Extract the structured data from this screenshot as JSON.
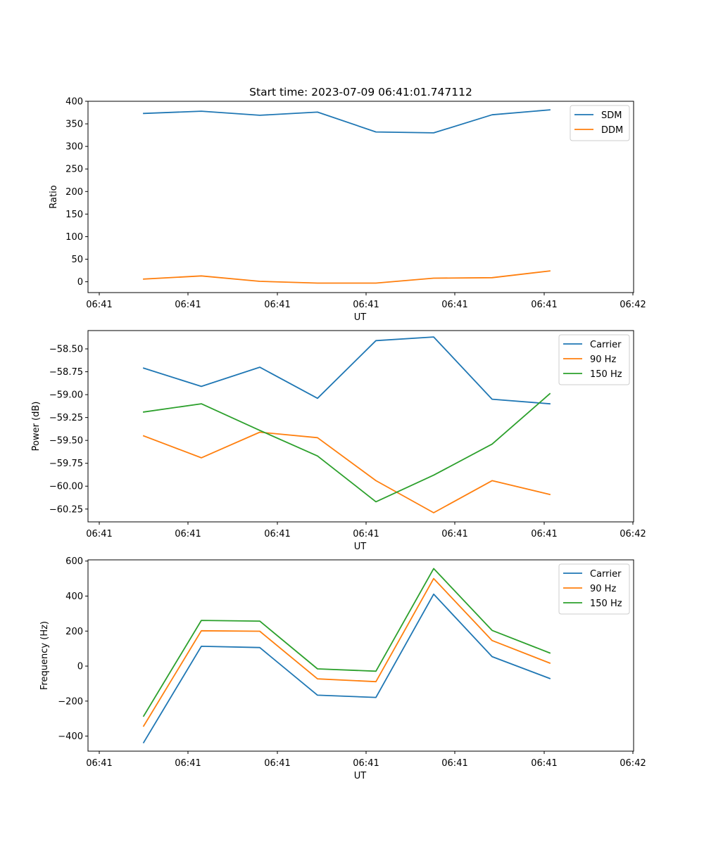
{
  "chart_data": [
    {
      "type": "line",
      "title": "Start time: 2023-07-09 06:41:01.747112",
      "xlabel": "UT",
      "ylabel": "Ratio",
      "x_tick_labels": [
        "06:41",
        "06:41",
        "06:41",
        "06:41",
        "06:41",
        "06:41",
        "06:41",
        "06:42"
      ],
      "y_ticks": [
        0,
        50,
        100,
        150,
        200,
        250,
        300,
        350,
        400
      ],
      "y_tick_labels": [
        "0",
        "50",
        "100",
        "150",
        "200",
        "250",
        "300",
        "350",
        "400"
      ],
      "ylim": [
        -24,
        400
      ],
      "legend": "top-right",
      "series": [
        {
          "name": "SDM",
          "color": "#1f77b4",
          "values": [
            373,
            378,
            369,
            376,
            332,
            330,
            370,
            381
          ]
        },
        {
          "name": "DDM",
          "color": "#ff7f0e",
          "values": [
            6,
            13,
            1,
            -3,
            -3,
            8,
            9,
            24
          ]
        }
      ]
    },
    {
      "type": "line",
      "title": "",
      "xlabel": "UT",
      "ylabel": "Power (dB)",
      "x_tick_labels": [
        "06:41",
        "06:41",
        "06:41",
        "06:41",
        "06:41",
        "06:41",
        "06:41",
        "06:42"
      ],
      "y_ticks": [
        -58.5,
        -58.75,
        -59.0,
        -59.25,
        -59.5,
        -59.75,
        -60.0,
        -60.25
      ],
      "y_tick_labels": [
        "−58.50",
        "−58.75",
        "−59.00",
        "−59.25",
        "−59.50",
        "−59.75",
        "−60.00",
        "−60.25"
      ],
      "ylim": [
        -60.39,
        -58.3
      ],
      "legend": "top-right",
      "series": [
        {
          "name": "Carrier",
          "color": "#1f77b4",
          "values": [
            -58.71,
            -58.91,
            -58.7,
            -59.04,
            -58.41,
            -58.37,
            -59.05,
            -59.1
          ]
        },
        {
          "name": "90 Hz",
          "color": "#ff7f0e",
          "values": [
            -59.45,
            -59.69,
            -59.41,
            -59.47,
            -59.94,
            -60.29,
            -59.94,
            -60.09
          ]
        },
        {
          "name": "150 Hz",
          "color": "#2ca02c",
          "values": [
            -59.19,
            -59.1,
            -59.39,
            -59.67,
            -60.17,
            -59.88,
            -59.54,
            -58.99
          ]
        }
      ]
    },
    {
      "type": "line",
      "title": "",
      "xlabel": "UT",
      "ylabel": "Frequency (Hz)",
      "x_tick_labels": [
        "06:41",
        "06:41",
        "06:41",
        "06:41",
        "06:41",
        "06:41",
        "06:41",
        "06:42"
      ],
      "y_ticks": [
        -400,
        -200,
        0,
        200,
        400,
        600
      ],
      "y_tick_labels": [
        "−400",
        "−200",
        "0",
        "200",
        "400",
        "600"
      ],
      "ylim": [
        -486,
        607
      ],
      "legend": "top-right",
      "series": [
        {
          "name": "Carrier",
          "color": "#1f77b4",
          "values": [
            -437,
            113,
            106,
            -166,
            -179,
            411,
            54,
            -71
          ]
        },
        {
          "name": "90 Hz",
          "color": "#ff7f0e",
          "values": [
            -343,
            202,
            199,
            -73,
            -89,
            500,
            146,
            17
          ]
        },
        {
          "name": "150 Hz",
          "color": "#2ca02c",
          "values": [
            -286,
            261,
            257,
            -16,
            -29,
            557,
            204,
            75
          ]
        }
      ]
    }
  ]
}
